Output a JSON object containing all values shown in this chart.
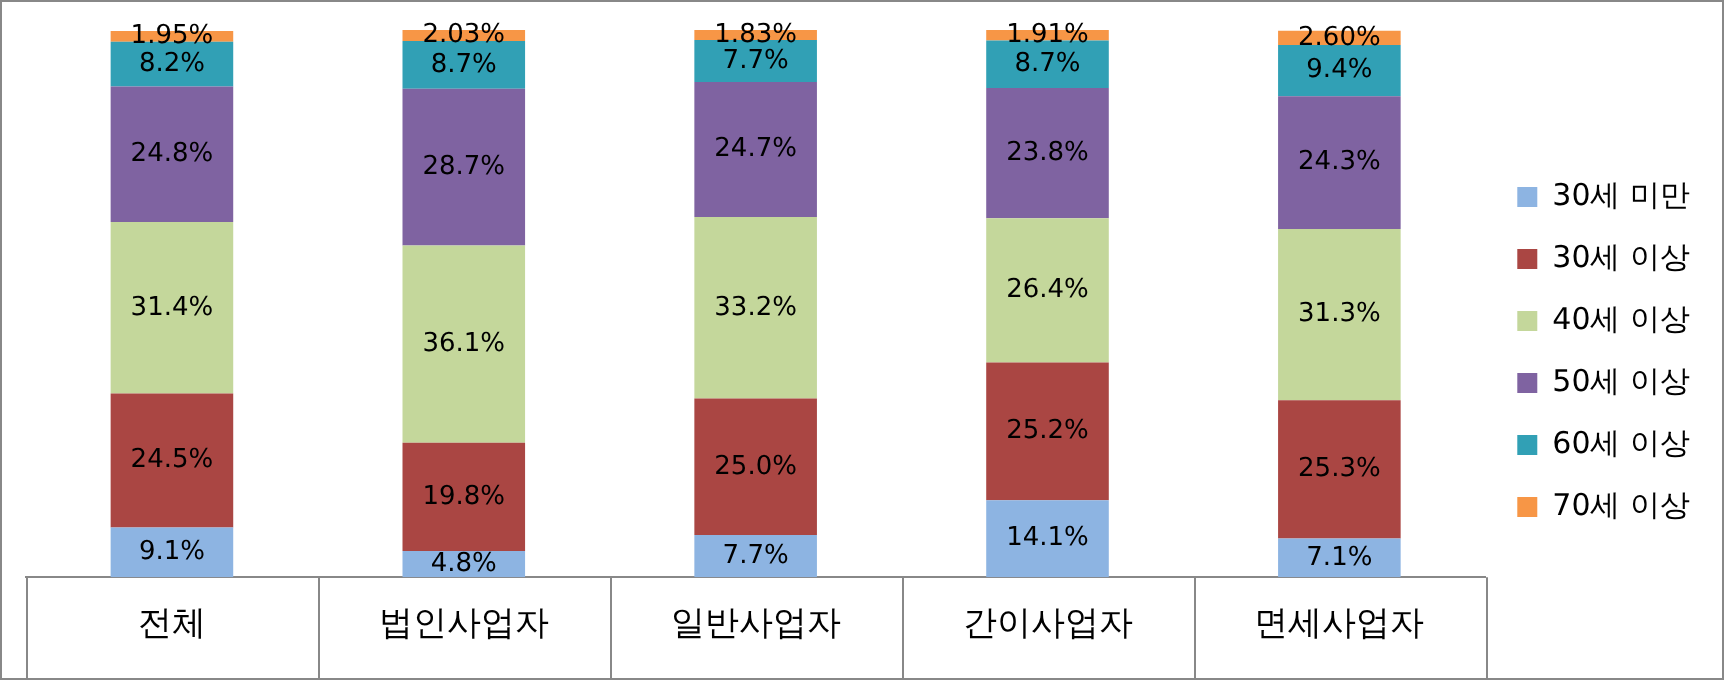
{
  "chart_data": {
    "type": "bar",
    "stacked": true,
    "legend": "right",
    "grid": false,
    "categories": [
      "전체",
      "법인사업자",
      "일반사업자",
      "간이사업자",
      "면세사업자"
    ],
    "series": [
      {
        "name": "30세 미만",
        "color": "#8db4e2",
        "values": [
          9.1,
          4.8,
          7.7,
          14.1,
          7.1
        ],
        "value_labels": [
          "9.1%",
          "4.8%",
          "7.7%",
          "14.1%",
          "7.1%"
        ]
      },
      {
        "name": "30세 이상",
        "color": "#aa4643",
        "values": [
          24.5,
          19.8,
          25.0,
          25.2,
          25.3
        ],
        "value_labels": [
          "24.5%",
          "19.8%",
          "25.0%",
          "25.2%",
          "25.3%"
        ]
      },
      {
        "name": "40세 이상",
        "color": "#c4d79b",
        "values": [
          31.4,
          36.1,
          33.2,
          26.4,
          31.3
        ],
        "value_labels": [
          "31.4%",
          "36.1%",
          "33.2%",
          "26.4%",
          "31.3%"
        ]
      },
      {
        "name": "50세 이상",
        "color": "#7f63a1",
        "values": [
          24.8,
          28.7,
          24.7,
          23.8,
          24.3
        ],
        "value_labels": [
          "24.8%",
          "28.7%",
          "24.7%",
          "23.8%",
          "24.3%"
        ]
      },
      {
        "name": "60세 이상",
        "color": "#31a0b5",
        "values": [
          8.2,
          8.7,
          7.7,
          8.7,
          9.4
        ],
        "value_labels": [
          "8.2%",
          "8.7%",
          "7.7%",
          "8.7%",
          "9.4%"
        ]
      },
      {
        "name": "70세 이상",
        "color": "#f79646",
        "values": [
          1.95,
          2.03,
          1.83,
          1.91,
          2.6
        ],
        "value_labels": [
          "1.95%",
          "2.03%",
          "1.83%",
          "1.91%",
          "2.60%"
        ]
      }
    ]
  }
}
